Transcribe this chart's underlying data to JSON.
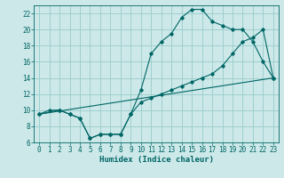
{
  "title": "",
  "xlabel": "Humidex (Indice chaleur)",
  "bg_color": "#cce8e8",
  "grid_color": "#99cccc",
  "line_color": "#006666",
  "line1_x": [
    0,
    1,
    2,
    3,
    4,
    5,
    6,
    7,
    8,
    9,
    10,
    11,
    12,
    13,
    14,
    15,
    16,
    17,
    18,
    19,
    20,
    21,
    22,
    23
  ],
  "line1_y": [
    9.5,
    10,
    10,
    9.5,
    9,
    6.5,
    7,
    7,
    7,
    9.5,
    12.5,
    17,
    18.5,
    19.5,
    21.5,
    22.5,
    22.5,
    21,
    20.5,
    20,
    20,
    18.5,
    16,
    14
  ],
  "line2_x": [
    0,
    2,
    3,
    4,
    5,
    6,
    7,
    8,
    9,
    10,
    11,
    12,
    13,
    14,
    15,
    16,
    17,
    18,
    19,
    20,
    21,
    22,
    23
  ],
  "line2_y": [
    9.5,
    10,
    9.5,
    9,
    6.5,
    7,
    7,
    7,
    9.5,
    11,
    11.5,
    12,
    12.5,
    13,
    13.5,
    14,
    14.5,
    15.5,
    17,
    18.5,
    19,
    20,
    14
  ],
  "line3_x": [
    0,
    23
  ],
  "line3_y": [
    9.5,
    14
  ],
  "xlim": [
    -0.5,
    23.5
  ],
  "ylim": [
    6,
    23
  ],
  "yticks": [
    6,
    8,
    10,
    12,
    14,
    16,
    18,
    20,
    22
  ],
  "xticks": [
    0,
    1,
    2,
    3,
    4,
    5,
    6,
    7,
    8,
    9,
    10,
    11,
    12,
    13,
    14,
    15,
    16,
    17,
    18,
    19,
    20,
    21,
    22,
    23
  ],
  "tick_fontsize": 5.5,
  "xlabel_fontsize": 6.5
}
